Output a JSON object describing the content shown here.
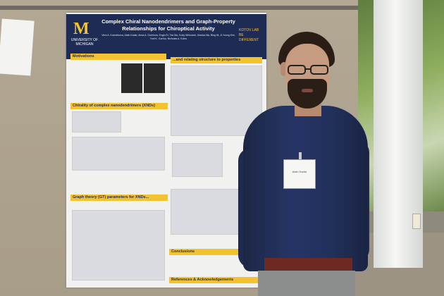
{
  "poster": {
    "university": "UNIVERSITY OF MICHIGAN",
    "logo_letter": "M",
    "title": "Complex Chiral Nanodendrimers and Graph-Property Relationships for Chiroptical Activity",
    "authors": "Vera A. Kuznetsova, Alain Kadar, Anna A. Gorelova, Engin Er, Tao Ma, Kody Whisnant, Jessica Ma, Bing Ni, Ji-Young Kim, Yurii K. Gun'ko, Nicholas A. Kotov",
    "lab": "KOTOV LAB BE DIFFERENT",
    "sections": {
      "motivations": "Motivations",
      "relating": "...and relating structure to properties",
      "chirality": "Chirality of complex nanodendrimers (XNDs)",
      "graph_theory": "Graph theory (GT) parameters for XNDs...",
      "conclusions": "Conclusions",
      "references": "References & Acknowledgements"
    }
  },
  "badge_text": "Alain Kadar",
  "colors": {
    "poster_navy": "#1e2c55",
    "poster_yellow": "#f2c230",
    "shirt": "#263566"
  }
}
